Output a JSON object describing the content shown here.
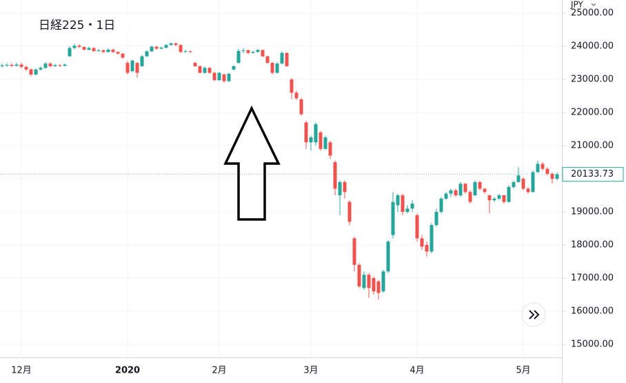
{
  "chart_data": {
    "type": "candlestick",
    "title": "日経225・1日",
    "currency": "JPY",
    "colors": {
      "up": "#26a69a",
      "down": "#ef5350"
    },
    "grid": true,
    "ylim": [
      14560,
      25400
    ],
    "yticks": [
      {
        "value": 15000,
        "label": "15000.00"
      },
      {
        "value": 16000,
        "label": "16000.00"
      },
      {
        "value": 17000,
        "label": "17000.00"
      },
      {
        "value": 18000,
        "label": "18000.00"
      },
      {
        "value": 19000,
        "label": "19000.00"
      },
      {
        "value": 20000,
        "label": "20000.00"
      },
      {
        "value": 21000,
        "label": "21000.00"
      },
      {
        "value": 22000,
        "label": "22000.00"
      },
      {
        "value": 23000,
        "label": "23000.00"
      },
      {
        "value": 24000,
        "label": "24000.00"
      },
      {
        "value": 25000,
        "label": "25000.00"
      }
    ],
    "categories": [
      null,
      null,
      null,
      null,
      "12月",
      null,
      null,
      null,
      null,
      null,
      null,
      null,
      null,
      null,
      null,
      null,
      null,
      null,
      null,
      null,
      null,
      null,
      null,
      null,
      null,
      null,
      "2020",
      null,
      null,
      null,
      null,
      null,
      null,
      null,
      null,
      null,
      null,
      null,
      null,
      null,
      null,
      null,
      null,
      null,
      null,
      "2月",
      null,
      null,
      null,
      null,
      null,
      null,
      null,
      null,
      null,
      null,
      null,
      null,
      null,
      null,
      null,
      null,
      null,
      null,
      "3月",
      null,
      null,
      null,
      null,
      null,
      null,
      null,
      null,
      null,
      null,
      null,
      null,
      null,
      null,
      null,
      null,
      null,
      null,
      null,
      null,
      null,
      "4月",
      null,
      null,
      null,
      null,
      null,
      null,
      null,
      null,
      null,
      null,
      null,
      null,
      null,
      null,
      null,
      null,
      null,
      null,
      null,
      null,
      null,
      "5月",
      null,
      null,
      null,
      null,
      null,
      null,
      null
    ],
    "ohlc": [
      [
        23400,
        23480,
        23360,
        23420
      ],
      [
        23420,
        23490,
        23380,
        23440
      ],
      [
        23440,
        23480,
        23370,
        23410
      ],
      [
        23410,
        23500,
        23390,
        23450
      ],
      [
        23450,
        23510,
        23330,
        23380
      ],
      [
        23380,
        23420,
        23260,
        23300
      ],
      [
        23300,
        23340,
        23100,
        23150
      ],
      [
        23150,
        23340,
        23120,
        23300
      ],
      [
        23300,
        23390,
        23270,
        23350
      ],
      [
        23350,
        23530,
        23320,
        23480
      ],
      [
        23480,
        23510,
        23370,
        23400
      ],
      [
        23400,
        23470,
        23380,
        23430
      ],
      [
        23430,
        23460,
        23380,
        23410
      ],
      [
        23410,
        23480,
        23390,
        23450
      ],
      [
        23700,
        24000,
        23680,
        23950
      ],
      [
        23950,
        24080,
        23920,
        24020
      ],
      [
        24020,
        24060,
        23950,
        23980
      ],
      [
        23980,
        24000,
        23870,
        23900
      ],
      [
        23900,
        23990,
        23880,
        23950
      ],
      [
        23950,
        23970,
        23830,
        23860
      ],
      [
        23860,
        23920,
        23840,
        23880
      ],
      [
        23880,
        23910,
        23800,
        23830
      ],
      [
        23830,
        23940,
        23810,
        23900
      ],
      [
        23900,
        23930,
        23800,
        23830
      ],
      [
        23830,
        23850,
        23750,
        23780
      ],
      [
        23780,
        23800,
        23620,
        23660
      ],
      [
        23500,
        23560,
        23150,
        23200
      ],
      [
        23250,
        23600,
        23220,
        23570
      ],
      [
        23500,
        23520,
        23050,
        23200
      ],
      [
        23400,
        23740,
        23380,
        23700
      ],
      [
        23700,
        23880,
        23680,
        23850
      ],
      [
        23850,
        24020,
        23830,
        23990
      ],
      [
        23990,
        24010,
        23900,
        23930
      ],
      [
        23930,
        23990,
        23910,
        23960
      ],
      [
        23960,
        24070,
        23940,
        24040
      ],
      [
        24040,
        24120,
        24020,
        24090
      ],
      [
        24090,
        24110,
        24000,
        24040
      ],
      [
        24040,
        24060,
        23800,
        23830
      ],
      [
        23830,
        23900,
        23810,
        23850
      ],
      [
        23850,
        23880,
        23800,
        23830
      ],
      [
        23500,
        23530,
        23380,
        23400
      ],
      [
        23400,
        23430,
        23180,
        23200
      ],
      [
        23200,
        23390,
        23170,
        23350
      ],
      [
        23350,
        23380,
        23170,
        23200
      ],
      [
        23200,
        23230,
        22950,
        22980
      ],
      [
        22980,
        23230,
        22950,
        23200
      ],
      [
        23150,
        23180,
        22900,
        22950
      ],
      [
        22950,
        23200,
        22920,
        23170
      ],
      [
        23300,
        23430,
        23280,
        23400
      ],
      [
        23500,
        23920,
        23480,
        23860
      ],
      [
        23860,
        23950,
        23800,
        23880
      ],
      [
        23880,
        23910,
        23770,
        23800
      ],
      [
        23800,
        23870,
        23780,
        23830
      ],
      [
        23830,
        23920,
        23810,
        23890
      ],
      [
        23890,
        23900,
        23670,
        23700
      ],
      [
        23700,
        23720,
        23480,
        23500
      ],
      [
        23500,
        23530,
        23150,
        23200
      ],
      [
        23200,
        23520,
        23180,
        23480
      ],
      [
        23480,
        23850,
        23460,
        23800
      ],
      [
        23800,
        23820,
        23380,
        23400
      ],
      [
        23000,
        23040,
        22400,
        22600
      ],
      [
        22600,
        22650,
        22380,
        22430
      ],
      [
        22400,
        22450,
        21900,
        21950
      ],
      [
        21700,
        21750,
        20900,
        21100
      ],
      [
        21100,
        21300,
        20850,
        21250
      ],
      [
        21100,
        21700,
        21000,
        21650
      ],
      [
        21400,
        21450,
        20850,
        20900
      ],
      [
        20900,
        21300,
        20880,
        21250
      ],
      [
        21100,
        21150,
        20600,
        20700
      ],
      [
        20500,
        20550,
        19500,
        19700
      ],
      [
        19500,
        19950,
        18900,
        19900
      ],
      [
        19900,
        19950,
        19400,
        19600
      ],
      [
        19300,
        19350,
        18600,
        18700
      ],
      [
        18200,
        18250,
        17200,
        17400
      ],
      [
        17400,
        17450,
        16700,
        16750
      ],
      [
        16700,
        17200,
        16650,
        17100
      ],
      [
        17100,
        17150,
        16400,
        16700
      ],
      [
        17000,
        17050,
        16500,
        16600
      ],
      [
        16900,
        16950,
        16350,
        16550
      ],
      [
        16600,
        17250,
        16550,
        17200
      ],
      [
        17200,
        18150,
        17150,
        18100
      ],
      [
        18300,
        19600,
        18200,
        19300
      ],
      [
        19200,
        19550,
        19000,
        19500
      ],
      [
        19500,
        19550,
        18900,
        19000
      ],
      [
        19000,
        19200,
        18950,
        19100
      ],
      [
        19100,
        19350,
        19000,
        19250
      ],
      [
        18900,
        18950,
        18100,
        18200
      ],
      [
        18200,
        18300,
        17850,
        17950
      ],
      [
        18000,
        18100,
        17650,
        17800
      ],
      [
        17800,
        18650,
        17750,
        18600
      ],
      [
        18600,
        19100,
        18550,
        19000
      ],
      [
        19000,
        19450,
        18950,
        19400
      ],
      [
        19400,
        19600,
        19350,
        19550
      ],
      [
        19550,
        19700,
        19450,
        19650
      ],
      [
        19650,
        19700,
        19450,
        19500
      ],
      [
        19500,
        19900,
        19450,
        19850
      ],
      [
        19850,
        19870,
        19550,
        19600
      ],
      [
        19600,
        19650,
        19250,
        19300
      ],
      [
        19500,
        19950,
        19480,
        19900
      ],
      [
        19900,
        19930,
        19650,
        19700
      ],
      [
        19700,
        19720,
        19550,
        19600
      ],
      [
        19500,
        19520,
        18950,
        19350
      ],
      [
        19350,
        19450,
        19300,
        19400
      ],
      [
        19400,
        19550,
        19350,
        19500
      ],
      [
        19500,
        19520,
        19250,
        19300
      ],
      [
        19300,
        19800,
        19280,
        19750
      ],
      [
        19750,
        19950,
        19700,
        19900
      ],
      [
        19900,
        20350,
        19880,
        20100
      ],
      [
        20000,
        20050,
        19650,
        19700
      ],
      [
        19700,
        19750,
        19550,
        19600
      ],
      [
        19600,
        20250,
        19580,
        20200
      ],
      [
        20200,
        20550,
        20180,
        20450
      ],
      [
        20450,
        20500,
        20250,
        20300
      ],
      [
        20300,
        20350,
        20100,
        20150
      ],
      [
        20150,
        20200,
        19850,
        20000
      ],
      [
        20000,
        20200,
        19950,
        20133.73
      ]
    ]
  }
}
